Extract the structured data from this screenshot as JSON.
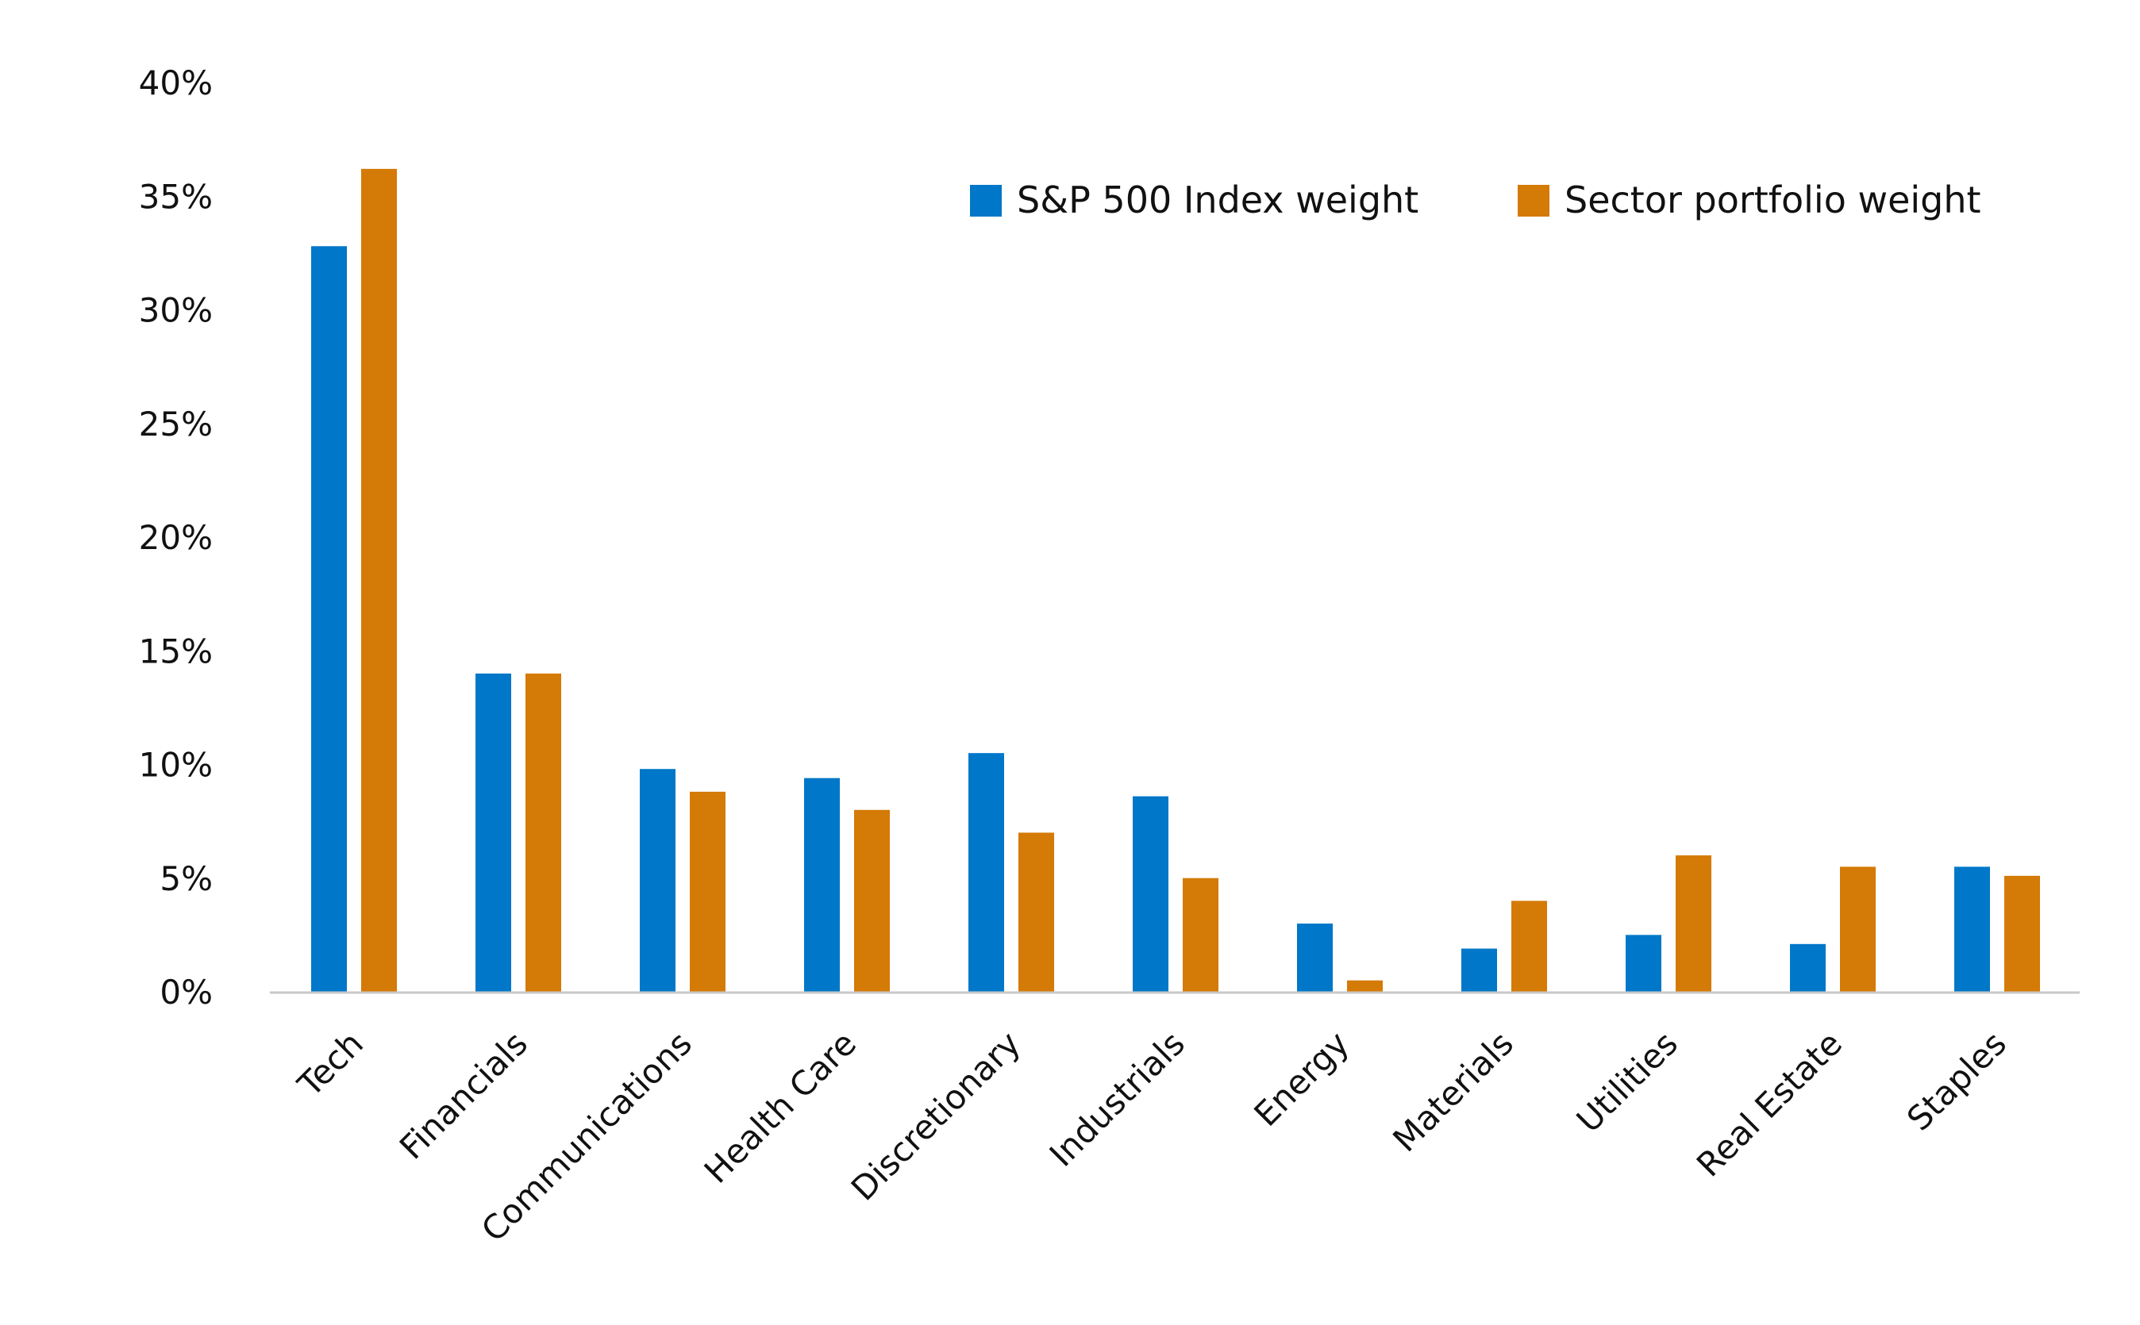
{
  "chart_data": {
    "type": "bar",
    "title": "",
    "xlabel": "",
    "ylabel": "",
    "ylim": [
      0,
      40
    ],
    "yticks": [
      0,
      5,
      10,
      15,
      20,
      25,
      30,
      35,
      40
    ],
    "ytick_labels": [
      "0%",
      "5%",
      "10%",
      "15%",
      "20%",
      "25%",
      "30%",
      "35%",
      "40%"
    ],
    "grid": false,
    "legend_position": "top-right",
    "categories": [
      "Tech",
      "Financials",
      "Communications",
      "Health Care",
      "Discretionary",
      "Industrials",
      "Energy",
      "Materials",
      "Utilities",
      "Real Estate",
      "Staples"
    ],
    "series": [
      {
        "name": "S&P 500 Index weight",
        "color": "#0077c8",
        "values": [
          32.8,
          14.0,
          9.8,
          9.4,
          10.5,
          8.6,
          3.0,
          1.9,
          2.5,
          2.1,
          5.5
        ]
      },
      {
        "name": "Sector portfolio weight",
        "color": "#d47a06",
        "values": [
          36.2,
          14.0,
          8.8,
          8.0,
          7.0,
          5.0,
          0.5,
          4.0,
          6.0,
          5.5,
          5.1
        ]
      }
    ],
    "axis_color": "#c8c8c8"
  }
}
